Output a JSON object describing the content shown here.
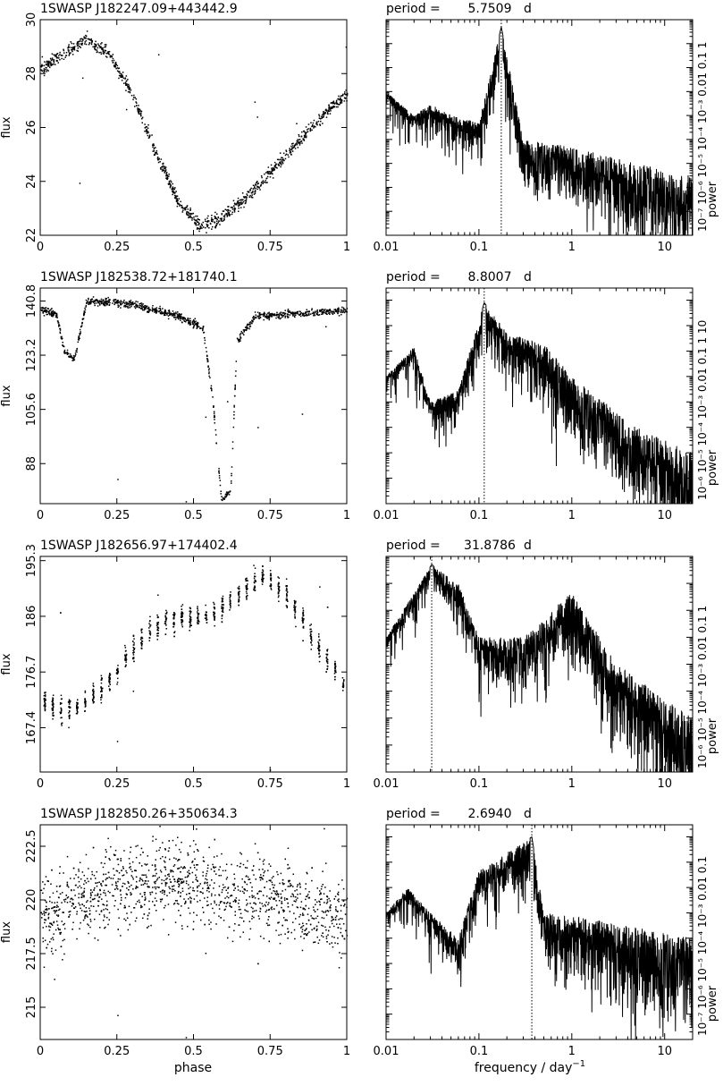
{
  "figure": {
    "xlabel_phase": "phase",
    "xlabel_freq": "frequency / day",
    "xlabel_freq_exp": "−1",
    "ylabel_flux": "flux",
    "ylabel_power": "power",
    "period_label": "period ="
  },
  "chart_data": [
    {
      "type": "scatter",
      "title": "1SWASP J182247.09+443442.9",
      "xlabel": "phase",
      "ylabel": "flux",
      "xlim": [
        0,
        1
      ],
      "ylim": [
        22,
        30
      ],
      "x_ticks": [
        0,
        0.25,
        0.5,
        0.75,
        1
      ],
      "x_tick_labels": [
        "0",
        "0.25",
        "0.5",
        "0.75",
        "1"
      ],
      "y_ticks": [
        22,
        24,
        26,
        28,
        30
      ],
      "y_tick_labels": [
        "22",
        "24",
        "26",
        "28",
        "30"
      ],
      "shape": "broad-dip",
      "curve": [
        [
          0,
          28.2
        ],
        [
          0.08,
          28.8
        ],
        [
          0.15,
          29.3
        ],
        [
          0.22,
          28.8
        ],
        [
          0.3,
          27.2
        ],
        [
          0.38,
          25.0
        ],
        [
          0.45,
          23.2
        ],
        [
          0.52,
          22.4
        ],
        [
          0.58,
          22.6
        ],
        [
          0.65,
          23.2
        ],
        [
          0.72,
          24.0
        ],
        [
          0.8,
          25.0
        ],
        [
          0.88,
          26.0
        ],
        [
          0.95,
          26.8
        ],
        [
          1,
          27.2
        ]
      ]
    },
    {
      "type": "line",
      "title": "period = 5.7509 d",
      "period_value": "5.7509",
      "period_unit": "d",
      "xlabel": "frequency / day^-1",
      "ylabel": "power",
      "x_scale": "log",
      "y_scale": "log",
      "xlim": [
        0.01,
        20
      ],
      "ylim": [
        1e-08,
        10
      ],
      "x_tick_labels": [
        "0.01",
        "0.1",
        "1",
        "10"
      ],
      "y_tick_labels": [
        "10⁻⁷",
        "10⁻⁶",
        "10⁻⁵",
        "10⁻⁴",
        "10⁻³",
        "0.01",
        "0.1",
        "1"
      ],
      "peak_frequency": 0.174,
      "marker_line_x": 0.174,
      "envelope": [
        [
          0.01,
          0.01
        ],
        [
          0.02,
          0.001
        ],
        [
          0.03,
          0.003
        ],
        [
          0.05,
          0.001
        ],
        [
          0.1,
          0.0005
        ],
        [
          0.174,
          5
        ],
        [
          0.3,
          0.0001
        ],
        [
          1,
          5e-05
        ],
        [
          5,
          1e-05
        ],
        [
          20,
          3e-06
        ]
      ]
    },
    {
      "type": "scatter",
      "title": "1SWASP J182538.72+181740.1",
      "xlabel": "phase",
      "ylabel": "flux",
      "xlim": [
        0,
        1
      ],
      "ylim": [
        75,
        145
      ],
      "x_ticks": [
        0,
        0.25,
        0.5,
        0.75,
        1
      ],
      "x_tick_labels": [
        "0",
        "0.25",
        "0.5",
        "0.75",
        "1"
      ],
      "y_ticks": [
        88,
        105.6,
        123.2,
        140.8
      ],
      "y_tick_labels": [
        "88",
        "105.6",
        "123.2",
        "140.8"
      ],
      "shape": "eclipsing",
      "curve": [
        [
          0,
          138
        ],
        [
          0.05,
          137
        ],
        [
          0.08,
          124
        ],
        [
          0.11,
          122
        ],
        [
          0.15,
          141
        ],
        [
          0.3,
          140
        ],
        [
          0.45,
          136
        ],
        [
          0.53,
          132
        ],
        [
          0.56,
          110
        ],
        [
          0.59,
          76
        ],
        [
          0.62,
          80
        ],
        [
          0.64,
          128
        ],
        [
          0.7,
          136
        ],
        [
          0.85,
          137
        ],
        [
          1,
          138
        ]
      ]
    },
    {
      "type": "line",
      "title": "period = 8.8007 d",
      "period_value": "8.8007",
      "period_unit": "d",
      "xlabel": "frequency / day^-1",
      "ylabel": "power",
      "x_scale": "log",
      "y_scale": "log",
      "xlim": [
        0.01,
        20
      ],
      "ylim": [
        1e-07,
        30
      ],
      "x_tick_labels": [
        "0.01",
        "0.1",
        "1",
        "10"
      ],
      "y_tick_labels": [
        "10⁻⁶",
        "10⁻⁵",
        "10⁻⁴",
        "10⁻³",
        "0.01",
        "0.1",
        "1",
        "10"
      ],
      "peak_frequency": 0.114,
      "marker_line_x": 0.114,
      "envelope": [
        [
          0.01,
          0.01
        ],
        [
          0.02,
          0.15
        ],
        [
          0.03,
          0.001
        ],
        [
          0.06,
          0.003
        ],
        [
          0.114,
          8
        ],
        [
          0.2,
          0.5
        ],
        [
          0.5,
          0.2
        ],
        [
          1,
          0.01
        ],
        [
          5,
          0.0001
        ],
        [
          20,
          1e-05
        ]
      ]
    },
    {
      "type": "scatter",
      "title": "1SWASP J182656.97+174402.4",
      "xlabel": "phase",
      "ylabel": "flux",
      "xlim": [
        0,
        1
      ],
      "ylim": [
        160,
        196
      ],
      "x_ticks": [
        0,
        0.25,
        0.5,
        0.75,
        1
      ],
      "x_tick_labels": [
        "0",
        "0.25",
        "0.5",
        "0.75",
        "1"
      ],
      "y_ticks": [
        167.4,
        176.7,
        186,
        195.3
      ],
      "y_tick_labels": [
        "167.4",
        "176.7",
        "186",
        "195.3"
      ],
      "shape": "segmented",
      "curve": [
        [
          0,
          172
        ],
        [
          0.08,
          170
        ],
        [
          0.15,
          172
        ],
        [
          0.25,
          177
        ],
        [
          0.35,
          184
        ],
        [
          0.45,
          186
        ],
        [
          0.55,
          186
        ],
        [
          0.65,
          190
        ],
        [
          0.72,
          193
        ],
        [
          0.8,
          190
        ],
        [
          0.88,
          183
        ],
        [
          0.95,
          178
        ],
        [
          1,
          174
        ]
      ]
    },
    {
      "type": "line",
      "title": "period = 31.8786 d",
      "period_value": "31.8786",
      "period_unit": "d",
      "xlabel": "frequency / day^-1",
      "ylabel": "power",
      "x_scale": "log",
      "y_scale": "log",
      "xlim": [
        0.01,
        20
      ],
      "ylim": [
        1e-07,
        10
      ],
      "x_tick_labels": [
        "0.01",
        "0.1",
        "1",
        "10"
      ],
      "y_tick_labels": [
        "10⁻⁶",
        "10⁻⁵",
        "10⁻⁴",
        "10⁻³",
        "0.01",
        "0.1",
        "1"
      ],
      "peak_frequency": 0.031,
      "marker_line_x": 0.031,
      "envelope": [
        [
          0.01,
          0.01
        ],
        [
          0.031,
          5
        ],
        [
          0.06,
          1
        ],
        [
          0.1,
          0.01
        ],
        [
          0.3,
          0.01
        ],
        [
          1,
          0.5
        ],
        [
          3,
          0.001
        ],
        [
          20,
          1e-05
        ]
      ]
    },
    {
      "type": "scatter",
      "title": "1SWASP J182850.26+350634.3",
      "xlabel": "phase",
      "ylabel": "flux",
      "xlim": [
        0,
        1
      ],
      "ylim": [
        213.5,
        223.5
      ],
      "x_ticks": [
        0,
        0.25,
        0.5,
        0.75,
        1
      ],
      "x_tick_labels": [
        "0",
        "0.25",
        "0.5",
        "0.75",
        "1"
      ],
      "y_ticks": [
        215,
        217.5,
        220,
        222.5
      ],
      "y_tick_labels": [
        "215",
        "217.5",
        "220",
        "222.5"
      ],
      "shape": "noisy",
      "curve": [
        [
          0,
          219.2
        ],
        [
          0.1,
          219.8
        ],
        [
          0.25,
          220.6
        ],
        [
          0.4,
          221.0
        ],
        [
          0.5,
          220.8
        ],
        [
          0.6,
          220.5
        ],
        [
          0.75,
          220.2
        ],
        [
          0.9,
          219.5
        ],
        [
          1,
          219.2
        ]
      ]
    },
    {
      "type": "line",
      "title": "period = 2.6940 d",
      "period_value": "2.6940",
      "period_unit": "d",
      "xlabel": "frequency / day^-1",
      "ylabel": "power",
      "x_scale": "log",
      "y_scale": "log",
      "xlim": [
        0.01,
        20
      ],
      "ylim": [
        1e-08,
        3
      ],
      "x_tick_labels": [
        "0.01",
        "0.1",
        "1",
        "10"
      ],
      "y_tick_labels": [
        "10⁻⁷",
        "10⁻⁶",
        "10⁻⁵",
        "10⁻⁴",
        "10⁻³",
        "0.01",
        "0.1"
      ],
      "peak_frequency": 0.371,
      "marker_line_x": 0.371,
      "envelope": [
        [
          0.01,
          0.001
        ],
        [
          0.017,
          0.01
        ],
        [
          0.03,
          0.001
        ],
        [
          0.06,
          0.0001
        ],
        [
          0.1,
          0.05
        ],
        [
          0.371,
          1
        ],
        [
          0.5,
          0.001
        ],
        [
          2,
          0.0005
        ],
        [
          20,
          0.0001
        ]
      ]
    }
  ]
}
